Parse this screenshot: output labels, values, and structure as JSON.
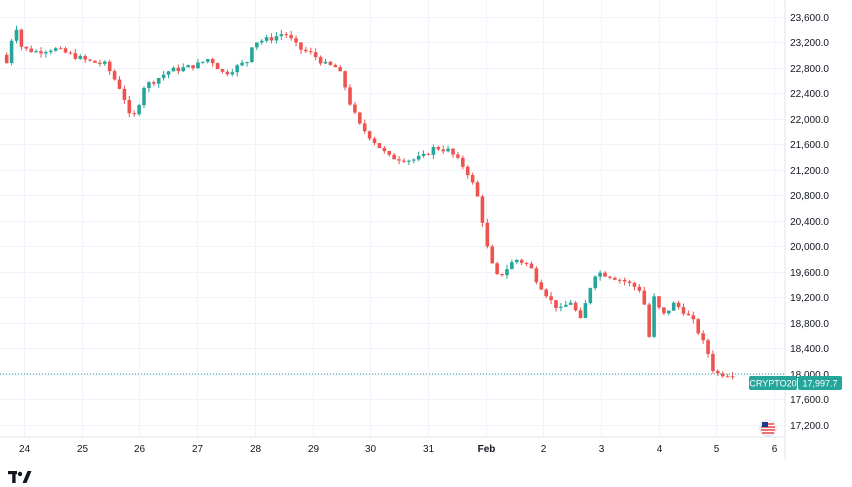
{
  "colors": {
    "up": "#26a69a",
    "down": "#ef5350",
    "grid": "#f0f3fa",
    "price_line": "#26a69a",
    "label_bg": "#26a69a",
    "label_text": "#ffffff"
  },
  "chart_data": {
    "type": "candlestick",
    "symbol": "CRYPTO20",
    "last_price": 17997.7,
    "last_price_label": "17,997.7",
    "ylim": [
      17100,
      23800
    ],
    "grid": true,
    "y_ticks": [
      17200,
      17600,
      18000,
      18400,
      18800,
      19200,
      19600,
      20000,
      20400,
      20800,
      21200,
      21600,
      22000,
      22400,
      22800,
      23200,
      23600
    ],
    "y_tick_labels": [
      "17,200.0",
      "17,600.0",
      "18,000.0",
      "18,400.0",
      "18,800.0",
      "19,200.0",
      "19,600.0",
      "20,000.0",
      "20,400.0",
      "20,800.0",
      "21,200.0",
      "21,600.0",
      "22,000.0",
      "22,400.0",
      "22,800.0",
      "23,200.0",
      "23,600.0"
    ],
    "x_labels": [
      "24",
      "25",
      "26",
      "27",
      "28",
      "29",
      "30",
      "31",
      "Feb",
      "2",
      "3",
      "4",
      "5",
      "6"
    ],
    "x_label_positions_days": [
      0,
      1,
      2,
      3,
      4,
      5,
      6,
      7,
      8,
      9,
      10,
      11,
      12,
      13
    ],
    "series": [
      {
        "anchor_day_offsets": [
          -0.3,
          -0.2,
          -0.12,
          -0.05,
          0.05,
          0.3,
          0.6,
          0.9,
          1.2,
          1.5,
          1.8,
          1.9,
          1.97,
          2.05,
          2.15,
          2.35,
          2.6,
          2.9,
          3.1,
          3.3,
          3.55,
          3.75,
          3.95,
          4.05,
          4.35,
          4.6,
          4.7,
          4.85,
          5.1,
          5.3,
          5.5,
          5.6,
          5.75,
          5.9,
          6.05,
          6.4,
          6.8,
          7.0,
          7.2,
          7.45,
          7.55,
          7.75,
          7.9,
          7.97,
          8.05,
          8.15,
          8.3,
          8.6,
          8.85,
          8.95,
          9.1,
          9.25,
          9.4,
          9.55,
          9.75,
          9.85,
          10.0,
          10.2,
          10.5,
          10.8,
          10.95,
          11.0,
          11.15,
          11.35,
          11.5,
          11.7,
          11.95,
          12.0,
          12.1,
          12.3
        ],
        "anchor_prices": [
          23000,
          22850,
          23300,
          23450,
          23100,
          23050,
          23100,
          23000,
          22900,
          22850,
          22400,
          22050,
          22000,
          22150,
          22500,
          22600,
          22750,
          22800,
          22850,
          22950,
          22700,
          22800,
          22900,
          23200,
          23250,
          23350,
          23250,
          23100,
          23000,
          22850,
          22800,
          22650,
          22200,
          21900,
          21750,
          21400,
          21350,
          21400,
          21550,
          21500,
          21400,
          21200,
          20900,
          20700,
          20300,
          19800,
          19500,
          19800,
          19700,
          19500,
          19300,
          19100,
          19000,
          19150,
          18800,
          19250,
          19600,
          19550,
          19450,
          19300,
          18400,
          19200,
          18900,
          19100,
          19000,
          18800,
          18300,
          18100,
          18000,
          17998
        ]
      }
    ]
  }
}
